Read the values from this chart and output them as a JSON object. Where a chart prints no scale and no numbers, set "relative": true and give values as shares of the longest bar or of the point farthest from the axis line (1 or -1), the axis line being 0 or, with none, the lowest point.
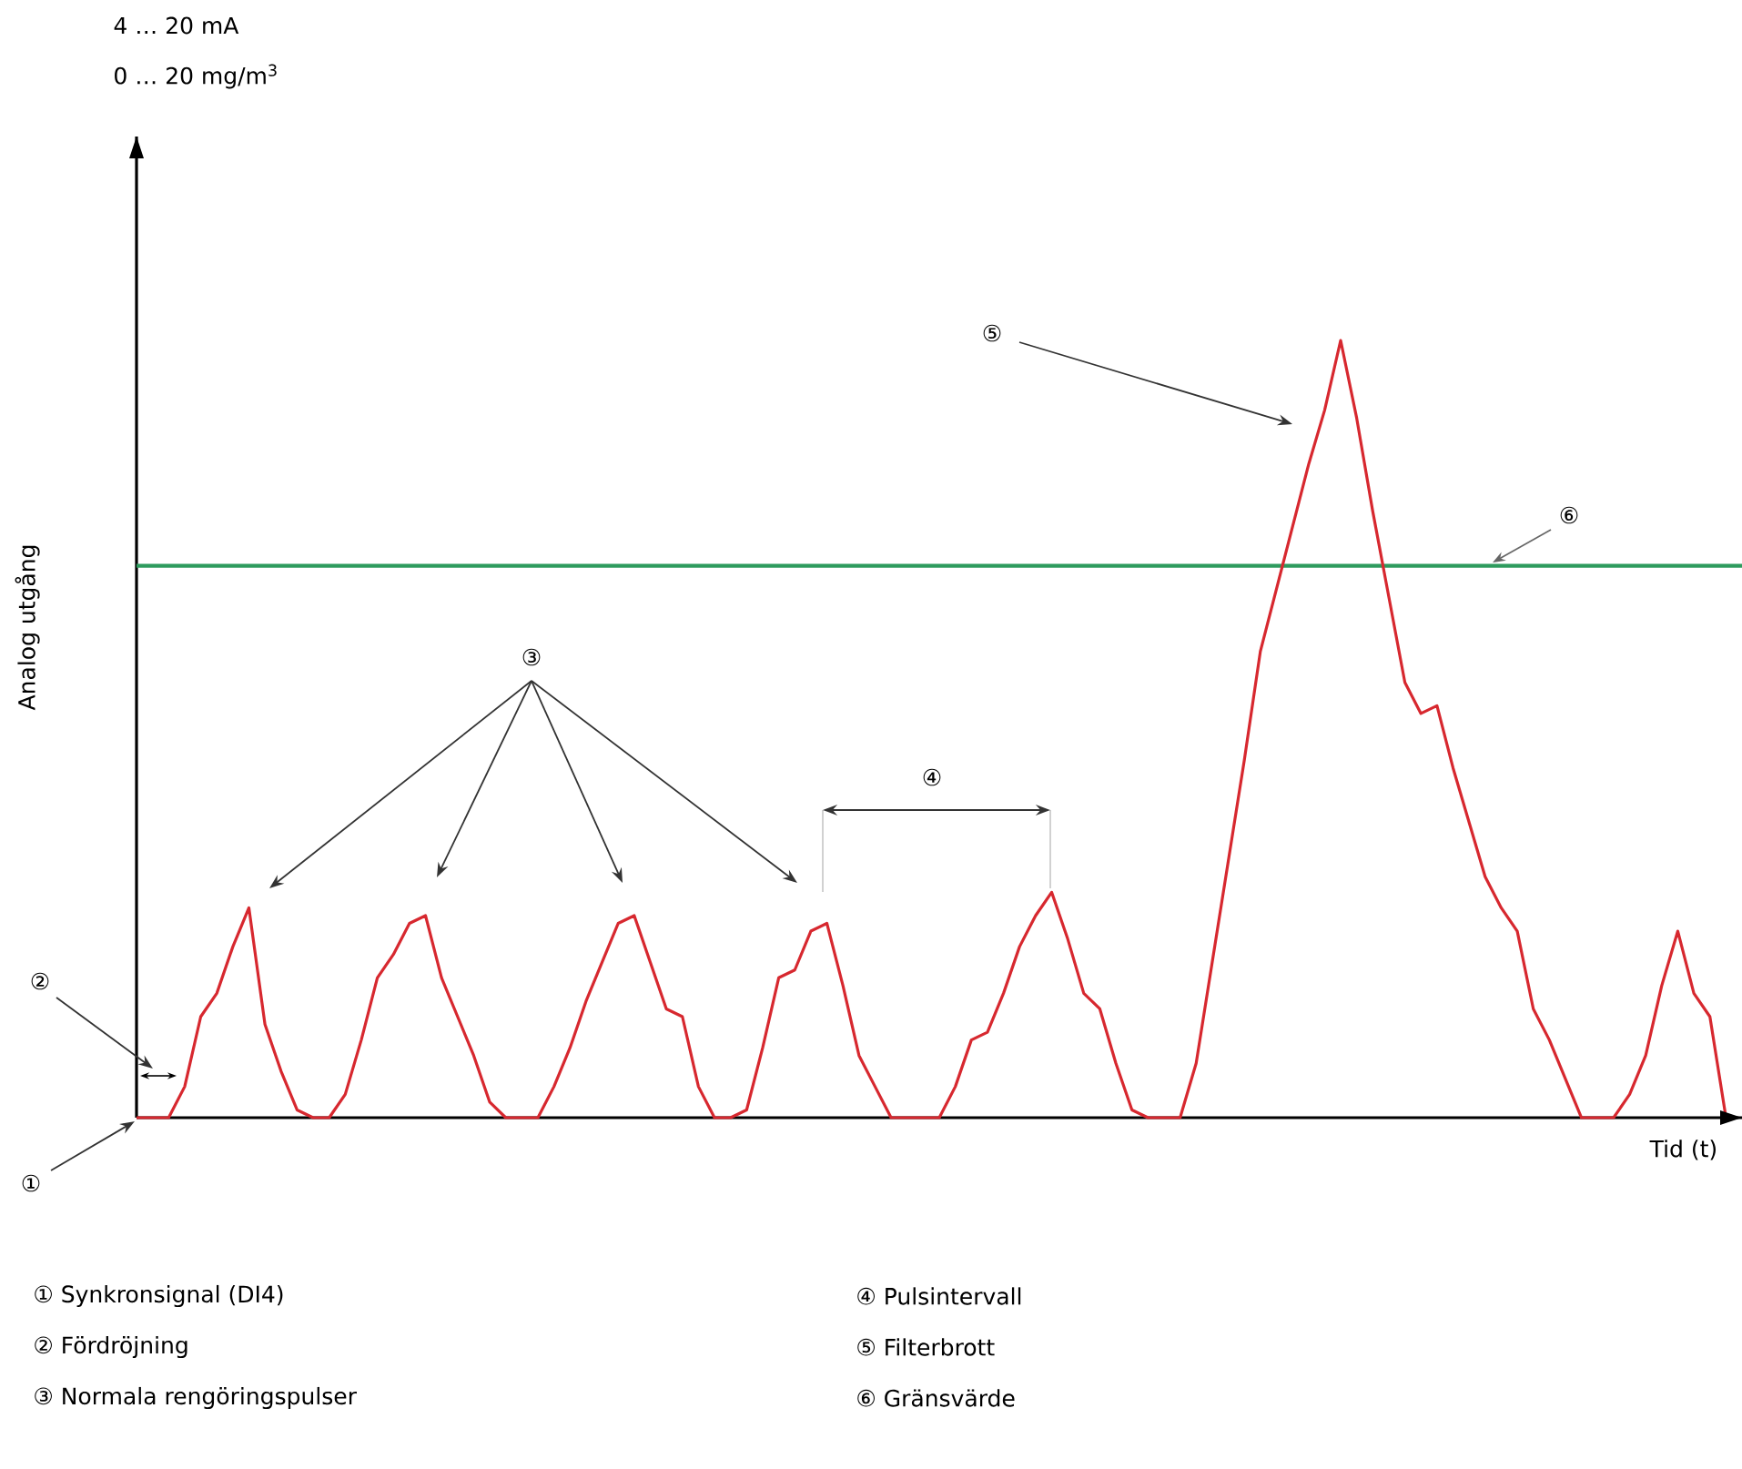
{
  "chart_data": {
    "type": "line",
    "relative": true,
    "title": "4 … 20 mA",
    "subtitle": "0 … 20 mg/m$^{3}$",
    "xlabel": "Tid (t)",
    "ylabel": "Analog utgång",
    "tick_labels": false,
    "marker": "none",
    "line_style": "solid",
    "categories": [
      null,
      null,
      null,
      null,
      null,
      null,
      null,
      null,
      null,
      null,
      null,
      null,
      null,
      null,
      null,
      null,
      null,
      null,
      null,
      null,
      null,
      null,
      null,
      null,
      null,
      null,
      null,
      null,
      null,
      null,
      null,
      null,
      null,
      null,
      null,
      null,
      null,
      null,
      null,
      null,
      null,
      null,
      null,
      null,
      null,
      null,
      null,
      null,
      null,
      null,
      null,
      null,
      null,
      null,
      null,
      null,
      null,
      null,
      null,
      null,
      null,
      null,
      null,
      null,
      null,
      null,
      null,
      null,
      null,
      null,
      null,
      null,
      null,
      null,
      null,
      null,
      null,
      null,
      null,
      null,
      null,
      null,
      null,
      null,
      null,
      null,
      null,
      null,
      null,
      null,
      null,
      null,
      null,
      null,
      null,
      null,
      null,
      null,
      null,
      null
    ],
    "series": [
      {
        "color": "#d7282f",
        "values": [
          0,
          0,
          0,
          0.04,
          0.13,
          0.16,
          0.22,
          0.27,
          0.12,
          0.06,
          0.01,
          0,
          0,
          0.03,
          0.1,
          0.18,
          0.21,
          0.25,
          0.26,
          0.18,
          0.13,
          0.08,
          0.02,
          0,
          0,
          0,
          0.04,
          0.09,
          0.15,
          0.2,
          0.25,
          0.26,
          0.2,
          0.14,
          0.13,
          0.04,
          0,
          0,
          0.01,
          0.09,
          0.18,
          0.19,
          0.24,
          0.25,
          0.17,
          0.08,
          0.04,
          0,
          0,
          0,
          0,
          0.04,
          0.1,
          0.11,
          0.16,
          0.22,
          0.26,
          0.29,
          0.23,
          0.16,
          0.14,
          0.07,
          0.01,
          0,
          0,
          0,
          0.07,
          0.2,
          0.33,
          0.46,
          0.6,
          0.68,
          0.76,
          0.84,
          0.91,
          1,
          0.9,
          0.78,
          0.67,
          0.56,
          0.52,
          0.53,
          0.45,
          0.38,
          0.31,
          0.27,
          0.24,
          0.14,
          0.1,
          0.05,
          0,
          0,
          0,
          0.03,
          0.08,
          0.17,
          0.24,
          0.16,
          0.13,
          0
        ]
      }
    ],
    "ref_lines": [
      {
        "axis": "y",
        "value": 0.71,
        "label": "⑥",
        "color": "#2e9b5e"
      }
    ],
    "annotations": [
      "①",
      "②",
      "③",
      "④",
      "⑤",
      "① Synkronsignal (DI4)",
      "② Fördröjning",
      "③ Normala rengöringspulser",
      "④ Pulsintervall",
      "⑤ Filterbrott",
      "⑥ Gränsvärde"
    ]
  }
}
